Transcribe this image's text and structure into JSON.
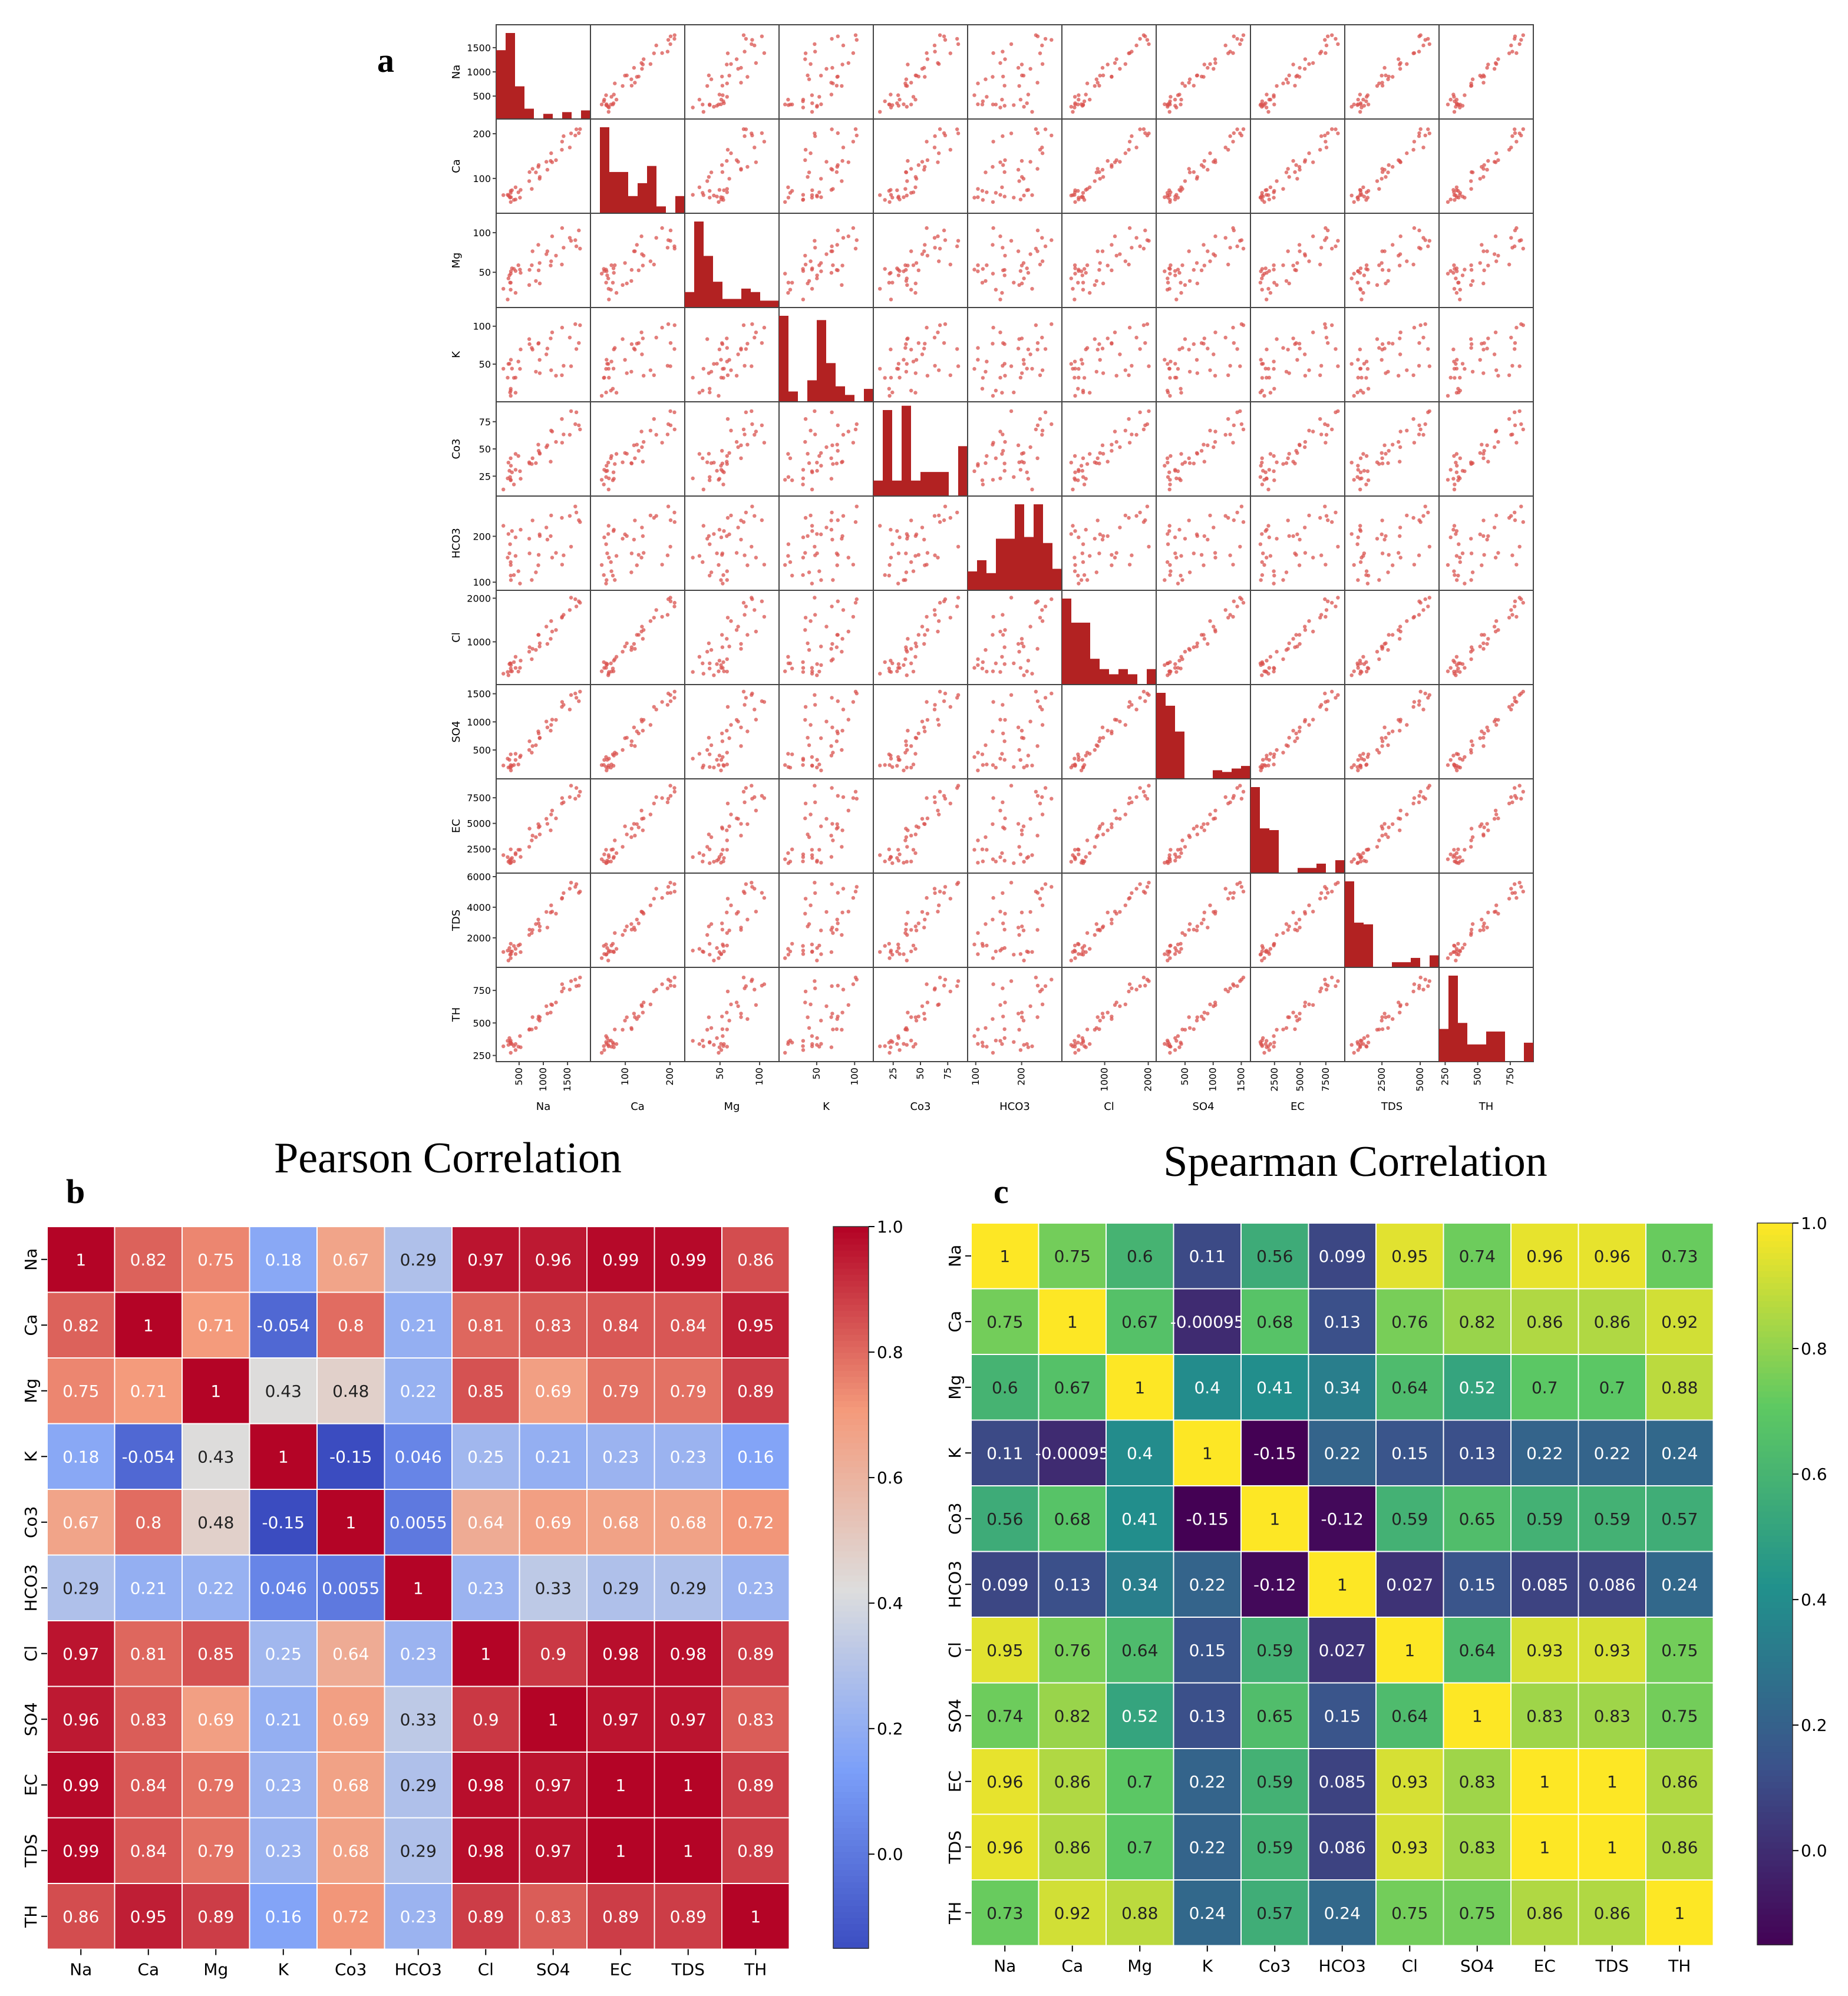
{
  "panel_labels": {
    "a": "a",
    "b": "b",
    "c": "c"
  },
  "variables": [
    "Na",
    "Ca",
    "Mg",
    "K",
    "Co3",
    "HCO3",
    "Cl",
    "SO4",
    "EC",
    "TDS",
    "TH"
  ],
  "colors": {
    "hist": "#b22222",
    "scatter": "#d9534f",
    "grid_line": "#ffffff",
    "diverging_low": "#3b4cc0",
    "diverging_mid": "#dddddd",
    "diverging_high": "#b40426"
  },
  "chart_data": [
    {
      "id": "scatter_matrix",
      "type": "scatter",
      "title": "",
      "variables": [
        "Na",
        "Ca",
        "Mg",
        "K",
        "Co3",
        "HCO3",
        "Cl",
        "SO4",
        "EC",
        "TDS",
        "TH"
      ],
      "ranges": [
        [
          100,
          1900
        ],
        [
          30,
          225
        ],
        [
          10,
          120
        ],
        [
          5,
          120
        ],
        [
          10,
          90
        ],
        [
          90,
          280
        ],
        [
          100,
          2100
        ],
        [
          50,
          1600
        ],
        [
          500,
          9000
        ],
        [
          300,
          6000
        ],
        [
          230,
          900
        ]
      ],
      "ticks": [
        [
          500,
          1000,
          1500
        ],
        [
          100,
          200
        ],
        [
          50,
          100
        ],
        [
          50,
          100
        ],
        [
          25,
          50,
          75
        ],
        [
          100,
          200
        ],
        [
          1000,
          2000
        ],
        [
          500,
          1000,
          1500
        ],
        [
          2500,
          5000,
          7500
        ],
        [
          2000,
          4000,
          6000
        ],
        [
          250,
          500,
          750
        ]
      ],
      "xticks": [
        [
          500,
          1000,
          1500
        ],
        [
          100,
          200
        ],
        [
          50,
          100
        ],
        [
          50,
          100
        ],
        [
          25,
          50,
          75
        ],
        [
          100,
          200
        ],
        [
          1000,
          2000
        ],
        [
          500,
          1000,
          1500
        ],
        [
          2500,
          5000,
          7500
        ],
        [
          2500,
          5000
        ],
        [
          250,
          500,
          750
        ]
      ],
      "histograms": [
        [
          0.8,
          1.0,
          0.38,
          0.12,
          0.0,
          0.06,
          0.0,
          0.08,
          0.0,
          0.1
        ],
        [
          0.0,
          1.0,
          0.48,
          0.48,
          0.2,
          0.35,
          0.55,
          0.08,
          0.0,
          0.2
        ],
        [
          0.18,
          1.0,
          0.6,
          0.3,
          0.1,
          0.1,
          0.22,
          0.18,
          0.08,
          0.08
        ],
        [
          1.0,
          0.12,
          0.0,
          0.25,
          0.95,
          0.45,
          0.18,
          0.08,
          0.0,
          0.15
        ],
        [
          0.18,
          1.0,
          0.18,
          1.05,
          0.18,
          0.28,
          0.28,
          0.28,
          0.0,
          0.58
        ],
        [
          0.22,
          0.35,
          0.2,
          0.6,
          0.6,
          1.0,
          0.62,
          1.0,
          0.55,
          0.25
        ],
        [
          1.0,
          0.72,
          0.72,
          0.3,
          0.18,
          0.12,
          0.18,
          0.12,
          0.0,
          0.18
        ],
        [
          1.0,
          0.85,
          0.55,
          0.0,
          0.0,
          0.0,
          0.1,
          0.08,
          0.12,
          0.15
        ],
        [
          1.0,
          0.52,
          0.5,
          0.0,
          0.0,
          0.06,
          0.06,
          0.11,
          0.0,
          0.15
        ],
        [
          1.0,
          0.52,
          0.5,
          0.0,
          0.0,
          0.06,
          0.06,
          0.11,
          0.0,
          0.14
        ],
        [
          0.38,
          1.0,
          0.45,
          0.2,
          0.2,
          0.35,
          0.35,
          0.0,
          0.0,
          0.22
        ]
      ]
    },
    {
      "id": "pearson",
      "type": "heatmap",
      "title": "Pearson Correlation",
      "variables": [
        "Na",
        "Ca",
        "Mg",
        "K",
        "Co3",
        "HCO3",
        "Cl",
        "SO4",
        "EC",
        "TDS",
        "TH"
      ],
      "colormap": "coolwarm",
      "vmin": -0.15,
      "vmax": 1.0,
      "colorbar_ticks": [
        "0.0",
        "0.2",
        "0.4",
        "0.6",
        "0.8",
        "1.0"
      ],
      "values": [
        [
          1,
          0.82,
          0.75,
          0.18,
          0.67,
          0.29,
          0.97,
          0.96,
          0.99,
          0.99,
          0.86
        ],
        [
          0.82,
          1,
          0.71,
          -0.054,
          0.8,
          0.21,
          0.81,
          0.83,
          0.84,
          0.84,
          0.95
        ],
        [
          0.75,
          0.71,
          1,
          0.43,
          0.48,
          0.22,
          0.85,
          0.69,
          0.79,
          0.79,
          0.89
        ],
        [
          0.18,
          -0.054,
          0.43,
          1,
          -0.15,
          0.046,
          0.25,
          0.21,
          0.23,
          0.23,
          0.16
        ],
        [
          0.67,
          0.8,
          0.48,
          -0.15,
          1,
          0.0055,
          0.64,
          0.69,
          0.68,
          0.68,
          0.72
        ],
        [
          0.29,
          0.21,
          0.22,
          0.046,
          0.0055,
          1,
          0.23,
          0.33,
          0.29,
          0.29,
          0.23
        ],
        [
          0.97,
          0.81,
          0.85,
          0.25,
          0.64,
          0.23,
          1,
          0.9,
          0.98,
          0.98,
          0.89
        ],
        [
          0.96,
          0.83,
          0.69,
          0.21,
          0.69,
          0.33,
          0.9,
          1,
          0.97,
          0.97,
          0.83
        ],
        [
          0.99,
          0.84,
          0.79,
          0.23,
          0.68,
          0.29,
          0.98,
          0.97,
          1,
          1,
          0.89
        ],
        [
          0.99,
          0.84,
          0.79,
          0.23,
          0.68,
          0.29,
          0.98,
          0.97,
          1,
          1,
          0.89
        ],
        [
          0.86,
          0.95,
          0.89,
          0.16,
          0.72,
          0.23,
          0.89,
          0.83,
          0.89,
          0.89,
          1
        ]
      ],
      "labels": [
        [
          "1",
          "0.82",
          "0.75",
          "0.18",
          "0.67",
          "0.29",
          "0.97",
          "0.96",
          "0.99",
          "0.99",
          "0.86"
        ],
        [
          "0.82",
          "1",
          "0.71",
          "-0.054",
          "0.8",
          "0.21",
          "0.81",
          "0.83",
          "0.84",
          "0.84",
          "0.95"
        ],
        [
          "0.75",
          "0.71",
          "1",
          "0.43",
          "0.48",
          "0.22",
          "0.85",
          "0.69",
          "0.79",
          "0.79",
          "0.89"
        ],
        [
          "0.18",
          "-0.054",
          "0.43",
          "1",
          "-0.15",
          "0.046",
          "0.25",
          "0.21",
          "0.23",
          "0.23",
          "0.16"
        ],
        [
          "0.67",
          "0.8",
          "0.48",
          "-0.15",
          "1",
          "0.0055",
          "0.64",
          "0.69",
          "0.68",
          "0.68",
          "0.72"
        ],
        [
          "0.29",
          "0.21",
          "0.22",
          "0.046",
          "0.0055",
          "1",
          "0.23",
          "0.33",
          "0.29",
          "0.29",
          "0.23"
        ],
        [
          "0.97",
          "0.81",
          "0.85",
          "0.25",
          "0.64",
          "0.23",
          "1",
          "0.9",
          "0.98",
          "0.98",
          "0.89"
        ],
        [
          "0.96",
          "0.83",
          "0.69",
          "0.21",
          "0.69",
          "0.33",
          "0.9",
          "1",
          "0.97",
          "0.97",
          "0.83"
        ],
        [
          "0.99",
          "0.84",
          "0.79",
          "0.23",
          "0.68",
          "0.29",
          "0.98",
          "0.97",
          "1",
          "1",
          "0.89"
        ],
        [
          "0.99",
          "0.84",
          "0.79",
          "0.23",
          "0.68",
          "0.29",
          "0.98",
          "0.97",
          "1",
          "1",
          "0.89"
        ],
        [
          "0.86",
          "0.95",
          "0.89",
          "0.16",
          "0.72",
          "0.23",
          "0.89",
          "0.83",
          "0.89",
          "0.89",
          "1"
        ]
      ]
    },
    {
      "id": "spearman",
      "type": "heatmap",
      "title": "Spearman Correlation",
      "variables": [
        "Na",
        "Ca",
        "Mg",
        "K",
        "Co3",
        "HCO3",
        "Cl",
        "SO4",
        "EC",
        "TDS",
        "TH"
      ],
      "colormap": "viridis",
      "vmin": -0.15,
      "vmax": 1.0,
      "colorbar_ticks": [
        "0.0",
        "0.2",
        "0.4",
        "0.6",
        "0.8",
        "1.0"
      ],
      "values": [
        [
          1,
          0.75,
          0.6,
          0.11,
          0.56,
          0.099,
          0.95,
          0.74,
          0.96,
          0.96,
          0.73
        ],
        [
          0.75,
          1,
          0.67,
          -0.00095,
          0.68,
          0.13,
          0.76,
          0.82,
          0.86,
          0.86,
          0.92
        ],
        [
          0.6,
          0.67,
          1,
          0.4,
          0.41,
          0.34,
          0.64,
          0.52,
          0.7,
          0.7,
          0.88
        ],
        [
          0.11,
          -0.00095,
          0.4,
          1,
          -0.15,
          0.22,
          0.15,
          0.13,
          0.22,
          0.22,
          0.24
        ],
        [
          0.56,
          0.68,
          0.41,
          -0.15,
          1,
          -0.12,
          0.59,
          0.65,
          0.59,
          0.59,
          0.57
        ],
        [
          0.099,
          0.13,
          0.34,
          0.22,
          -0.12,
          1,
          0.027,
          0.15,
          0.085,
          0.086,
          0.24
        ],
        [
          0.95,
          0.76,
          0.64,
          0.15,
          0.59,
          0.027,
          1,
          0.64,
          0.93,
          0.93,
          0.75
        ],
        [
          0.74,
          0.82,
          0.52,
          0.13,
          0.65,
          0.15,
          0.64,
          1,
          0.83,
          0.83,
          0.75
        ],
        [
          0.96,
          0.86,
          0.7,
          0.22,
          0.59,
          0.085,
          0.93,
          0.83,
          1,
          1,
          0.86
        ],
        [
          0.96,
          0.86,
          0.7,
          0.22,
          0.59,
          0.086,
          0.93,
          0.83,
          1,
          1,
          0.86
        ],
        [
          0.73,
          0.92,
          0.88,
          0.24,
          0.57,
          0.24,
          0.75,
          0.75,
          0.86,
          0.86,
          1
        ]
      ],
      "labels": [
        [
          "1",
          "0.75",
          "0.6",
          "0.11",
          "0.56",
          "0.099",
          "0.95",
          "0.74",
          "0.96",
          "0.96",
          "0.73"
        ],
        [
          "0.75",
          "1",
          "0.67",
          "-0.00095",
          "0.68",
          "0.13",
          "0.76",
          "0.82",
          "0.86",
          "0.86",
          "0.92"
        ],
        [
          "0.6",
          "0.67",
          "1",
          "0.4",
          "0.41",
          "0.34",
          "0.64",
          "0.52",
          "0.7",
          "0.7",
          "0.88"
        ],
        [
          "0.11",
          "-0.00095",
          "0.4",
          "1",
          "-0.15",
          "0.22",
          "0.15",
          "0.13",
          "0.22",
          "0.22",
          "0.24"
        ],
        [
          "0.56",
          "0.68",
          "0.41",
          "-0.15",
          "1",
          "-0.12",
          "0.59",
          "0.65",
          "0.59",
          "0.59",
          "0.57"
        ],
        [
          "0.099",
          "0.13",
          "0.34",
          "0.22",
          "-0.12",
          "1",
          "0.027",
          "0.15",
          "0.085",
          "0.086",
          "0.24"
        ],
        [
          "0.95",
          "0.76",
          "0.64",
          "0.15",
          "0.59",
          "0.027",
          "1",
          "0.64",
          "0.93",
          "0.93",
          "0.75"
        ],
        [
          "0.74",
          "0.82",
          "0.52",
          "0.13",
          "0.65",
          "0.15",
          "0.64",
          "1",
          "0.83",
          "0.83",
          "0.75"
        ],
        [
          "0.96",
          "0.86",
          "0.7",
          "0.22",
          "0.59",
          "0.085",
          "0.93",
          "0.83",
          "1",
          "1",
          "0.86"
        ],
        [
          "0.96",
          "0.86",
          "0.7",
          "0.22",
          "0.59",
          "0.086",
          "0.93",
          "0.83",
          "1",
          "1",
          "0.86"
        ],
        [
          "0.73",
          "0.92",
          "0.88",
          "0.24",
          "0.57",
          "0.24",
          "0.75",
          "0.75",
          "0.86",
          "0.86",
          "1"
        ]
      ]
    }
  ]
}
